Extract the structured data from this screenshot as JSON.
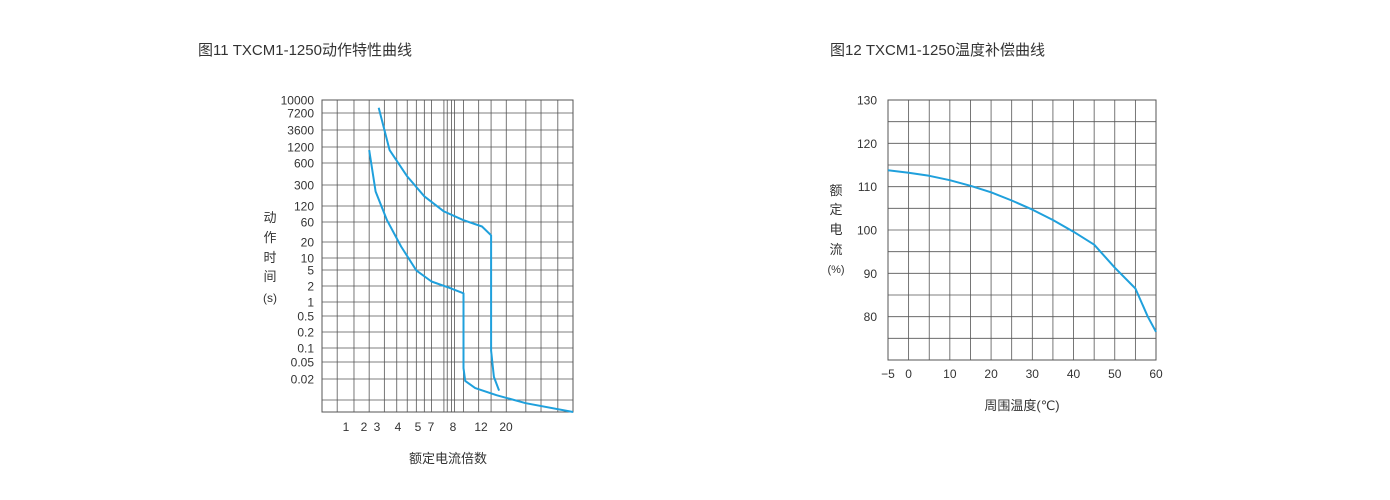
{
  "chart_data": [
    {
      "type": "line",
      "title": "图11 TXCM1-1250动作特性曲线",
      "xlabel": "额定电流倍数",
      "ylabel": [
        "动",
        "作",
        "时",
        "间",
        "(s)"
      ],
      "x_tick_labels": [
        "1",
        "2",
        "3",
        "4",
        "5",
        "7",
        "8",
        "12",
        "20"
      ],
      "y_tick_labels": [
        "10000",
        "7200",
        "3600",
        "1200",
        "600",
        "300",
        "120",
        "60",
        "20",
        "10",
        "5",
        "2",
        "1",
        "0.5",
        "0.2",
        "0.1",
        "0.05",
        "0.02"
      ],
      "x_scale": "log",
      "y_scale": "log",
      "grid": true,
      "series": [
        {
          "x": [
            2.0,
            2.2,
            2.6,
            3.2,
            4.0,
            5.0,
            6.5,
            8.0,
            8.0,
            8.2,
            9.5,
            13,
            20,
            40
          ],
          "y": [
            1000,
            150,
            40,
            12,
            4,
            2.4,
            1.8,
            1.4,
            0.045,
            0.025,
            0.018,
            0.013,
            0.009,
            0.006
          ]
        },
        {
          "x": [
            2.3,
            2.7,
            3.5,
            4.5,
            6.0,
            8.0,
            10.5,
            12.0,
            12.0,
            12.5,
            13.5
          ],
          "y": [
            7000,
            1000,
            300,
            120,
            60,
            40,
            30,
            20,
            0.1,
            0.03,
            0.016
          ]
        }
      ]
    },
    {
      "type": "line",
      "title": "图12 TXCM1-1250温度补偿曲线",
      "xlabel": "周围温度(℃)",
      "ylabel": [
        "额",
        "定",
        "电",
        "流",
        "(%)"
      ],
      "x_tick_labels": [
        "−5",
        "0",
        "10",
        "20",
        "30",
        "40",
        "50",
        "60"
      ],
      "y_tick_labels": [
        "130",
        "120",
        "110",
        "100",
        "90",
        "80"
      ],
      "xlim": [
        -5,
        60
      ],
      "ylim": [
        70,
        130
      ],
      "grid": true,
      "series": [
        {
          "x": [
            -5,
            0,
            5,
            10,
            15,
            20,
            25,
            30,
            35,
            40,
            45,
            50,
            55,
            58,
            60
          ],
          "y": [
            113.8,
            113.2,
            112.5,
            111.5,
            110.2,
            108.7,
            106.8,
            104.7,
            102.3,
            99.6,
            96.6,
            91.3,
            86.5,
            80.0,
            76.5
          ]
        }
      ]
    }
  ],
  "colors": {
    "curve": "#1fa0dc",
    "grid": "#555555",
    "text": "#333333"
  }
}
